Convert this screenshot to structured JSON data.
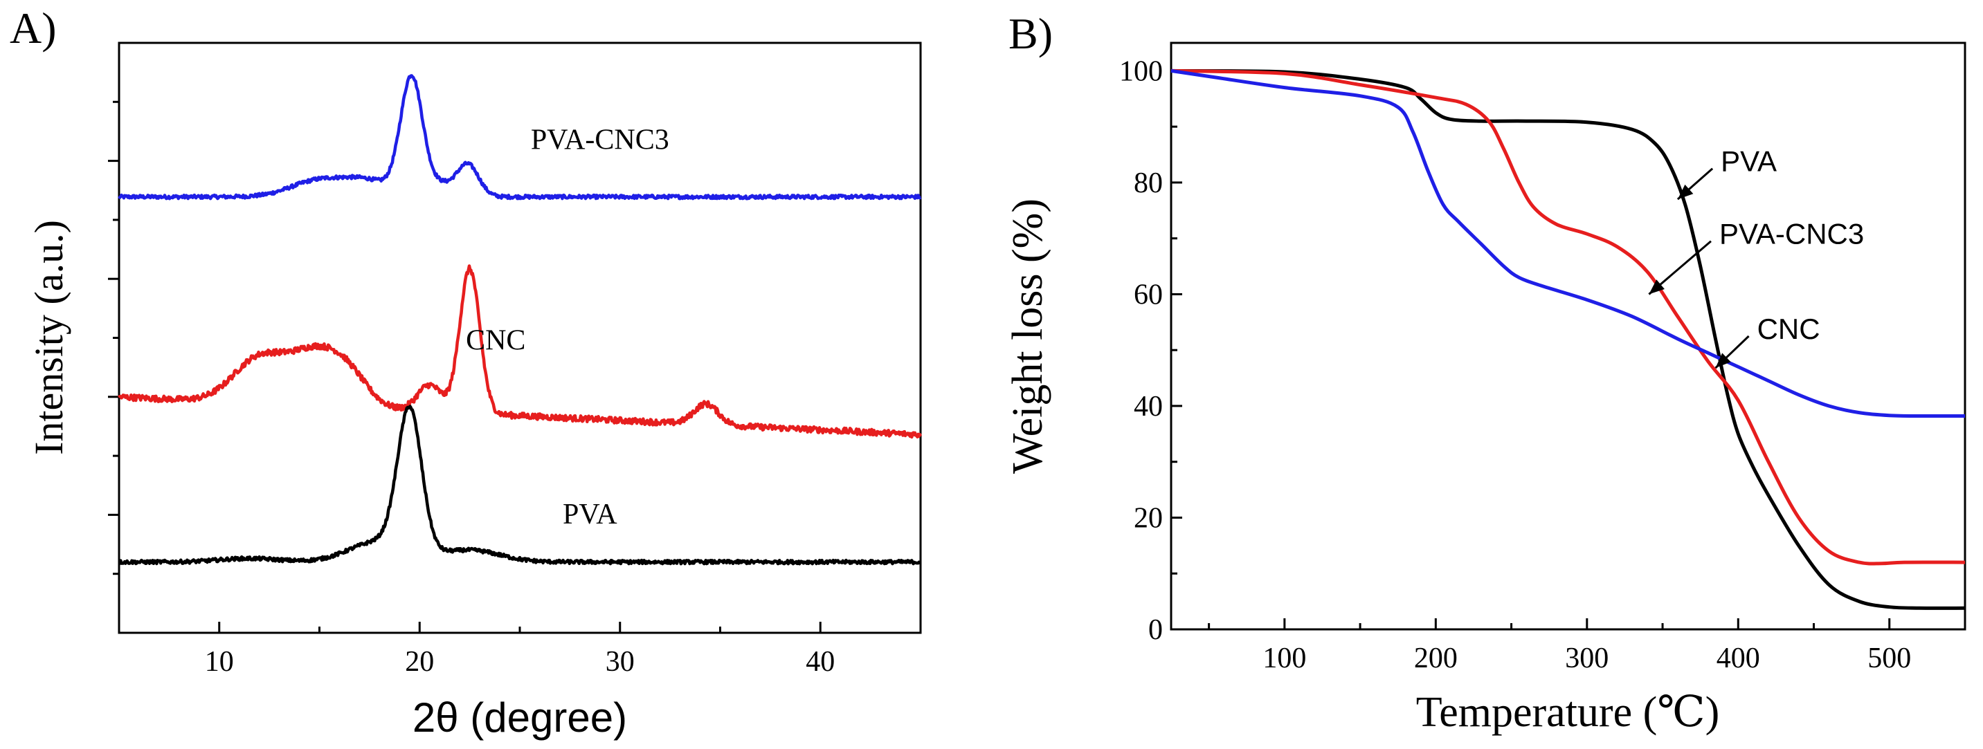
{
  "chart_data": [
    {
      "panel_label": "A)",
      "type": "line",
      "title": "",
      "xlabel": "2θ (degree)",
      "ylabel": "Intensity (a.u.)",
      "xlim": [
        5,
        45
      ],
      "ylim": [
        0,
        10
      ],
      "xticks": [
        10,
        20,
        30,
        40
      ],
      "x_tick_labels": [
        "10",
        "20",
        "30",
        "40"
      ],
      "y_tick_labels_shown": false,
      "grid": false,
      "series": [
        {
          "name": "PVA-CNC3",
          "color": "#1f1fe6",
          "label": "PVA-CNC3",
          "baseline": 7.39,
          "noise": 0.03,
          "peaks": [
            {
              "center": 19.6,
              "height": 2.0,
              "width": 0.55
            },
            {
              "center": 22.4,
              "height": 0.55,
              "width": 0.55
            },
            {
              "center": 15.0,
              "height": 0.28,
              "width": 1.4
            },
            {
              "center": 17.5,
              "height": 0.25,
              "width": 1.2
            },
            {
              "center": 21.0,
              "height": 0.2,
              "width": 0.6
            }
          ]
        },
        {
          "name": "CNC",
          "color": "#e61e1e",
          "label": "CNC",
          "baseline": 4.0,
          "noise": 0.05,
          "slope": -0.016,
          "peaks": [
            {
              "center": 22.5,
              "height": 2.45,
              "width": 0.5
            },
            {
              "center": 12.0,
              "height": 0.75,
              "width": 1.3
            },
            {
              "center": 14.8,
              "height": 0.85,
              "width": 1.3
            },
            {
              "center": 16.5,
              "height": 0.4,
              "width": 1.0
            },
            {
              "center": 20.5,
              "height": 0.45,
              "width": 0.6
            },
            {
              "center": 34.3,
              "height": 0.35,
              "width": 0.6
            }
          ]
        },
        {
          "name": "PVA",
          "color": "#000000",
          "label": "PVA",
          "baseline": 1.2,
          "noise": 0.03,
          "peaks": [
            {
              "center": 19.5,
              "height": 2.4,
              "width": 0.6
            },
            {
              "center": 18.0,
              "height": 0.35,
              "width": 1.5
            },
            {
              "center": 22.5,
              "height": 0.2,
              "width": 1.5
            },
            {
              "center": 11.5,
              "height": 0.06,
              "width": 1.5
            }
          ]
        }
      ],
      "annotations": [
        {
          "text": "PVA-CNC3",
          "x": 29.0,
          "y": 8.2
        },
        {
          "text": "CNC",
          "x": 23.8,
          "y": 4.8
        },
        {
          "text": "PVA",
          "x": 28.5,
          "y": 1.85
        }
      ]
    },
    {
      "panel_label": "B)",
      "type": "line",
      "title": "",
      "xlabel": "Temperature (℃)",
      "ylabel": "Weight loss (%)",
      "xlim": [
        25,
        550
      ],
      "ylim": [
        0,
        105
      ],
      "xticks": [
        100,
        200,
        300,
        400,
        500
      ],
      "x_tick_labels": [
        "100",
        "200",
        "300",
        "400",
        "500"
      ],
      "yticks": [
        0,
        20,
        40,
        60,
        80,
        100
      ],
      "y_tick_labels": [
        "0",
        "20",
        "40",
        "60",
        "80",
        "100"
      ],
      "grid": false,
      "series": [
        {
          "name": "PVA",
          "color": "#000000",
          "x": [
            25,
            100,
            150,
            180,
            190,
            200,
            210,
            230,
            260,
            300,
            330,
            345,
            355,
            365,
            375,
            385,
            393,
            400,
            410,
            420,
            440,
            460,
            480,
            500,
            520,
            550
          ],
          "y": [
            100,
            99.8,
            98.5,
            97,
            95,
            92.5,
            91.3,
            91,
            91,
            90.8,
            89.5,
            87,
            83,
            76,
            65,
            52,
            42,
            35,
            29,
            24,
            15,
            8,
            5,
            4,
            3.8,
            3.8
          ]
        },
        {
          "name": "PVA-CNC3",
          "color": "#e61e1e",
          "x": [
            25,
            100,
            150,
            200,
            220,
            235,
            245,
            255,
            265,
            280,
            300,
            320,
            340,
            360,
            380,
            400,
            420,
            440,
            460,
            480,
            495,
            510,
            550
          ],
          "y": [
            100,
            99.5,
            97.5,
            95.2,
            94,
            91,
            86,
            80,
            75.5,
            72.5,
            70.8,
            68.5,
            64,
            56,
            48,
            41,
            30,
            20,
            14,
            12,
            11.8,
            12,
            12
          ]
        },
        {
          "name": "CNC",
          "color": "#1f1fe6",
          "x": [
            25,
            50,
            100,
            150,
            175,
            185,
            195,
            205,
            215,
            230,
            245,
            255,
            270,
            300,
            330,
            360,
            380,
            400,
            420,
            440,
            460,
            480,
            500,
            520,
            550
          ],
          "y": [
            100,
            99,
            97,
            95.5,
            93.5,
            89,
            82,
            76,
            73,
            69,
            65,
            63,
            61.5,
            59,
            56,
            52,
            49.5,
            47,
            44.5,
            42,
            40,
            38.8,
            38.3,
            38.2,
            38.2
          ]
        }
      ],
      "annotations": [
        {
          "text": "PVA",
          "tip": [
            360,
            77
          ],
          "tail": [
            383,
            82.5
          ]
        },
        {
          "text": "PVA-CNC3",
          "tip": [
            341,
            60
          ],
          "tail": [
            382,
            69.5
          ]
        },
        {
          "text": "CNC",
          "tip": [
            385,
            46.8
          ],
          "tail": [
            407,
            52.5
          ]
        }
      ]
    }
  ]
}
